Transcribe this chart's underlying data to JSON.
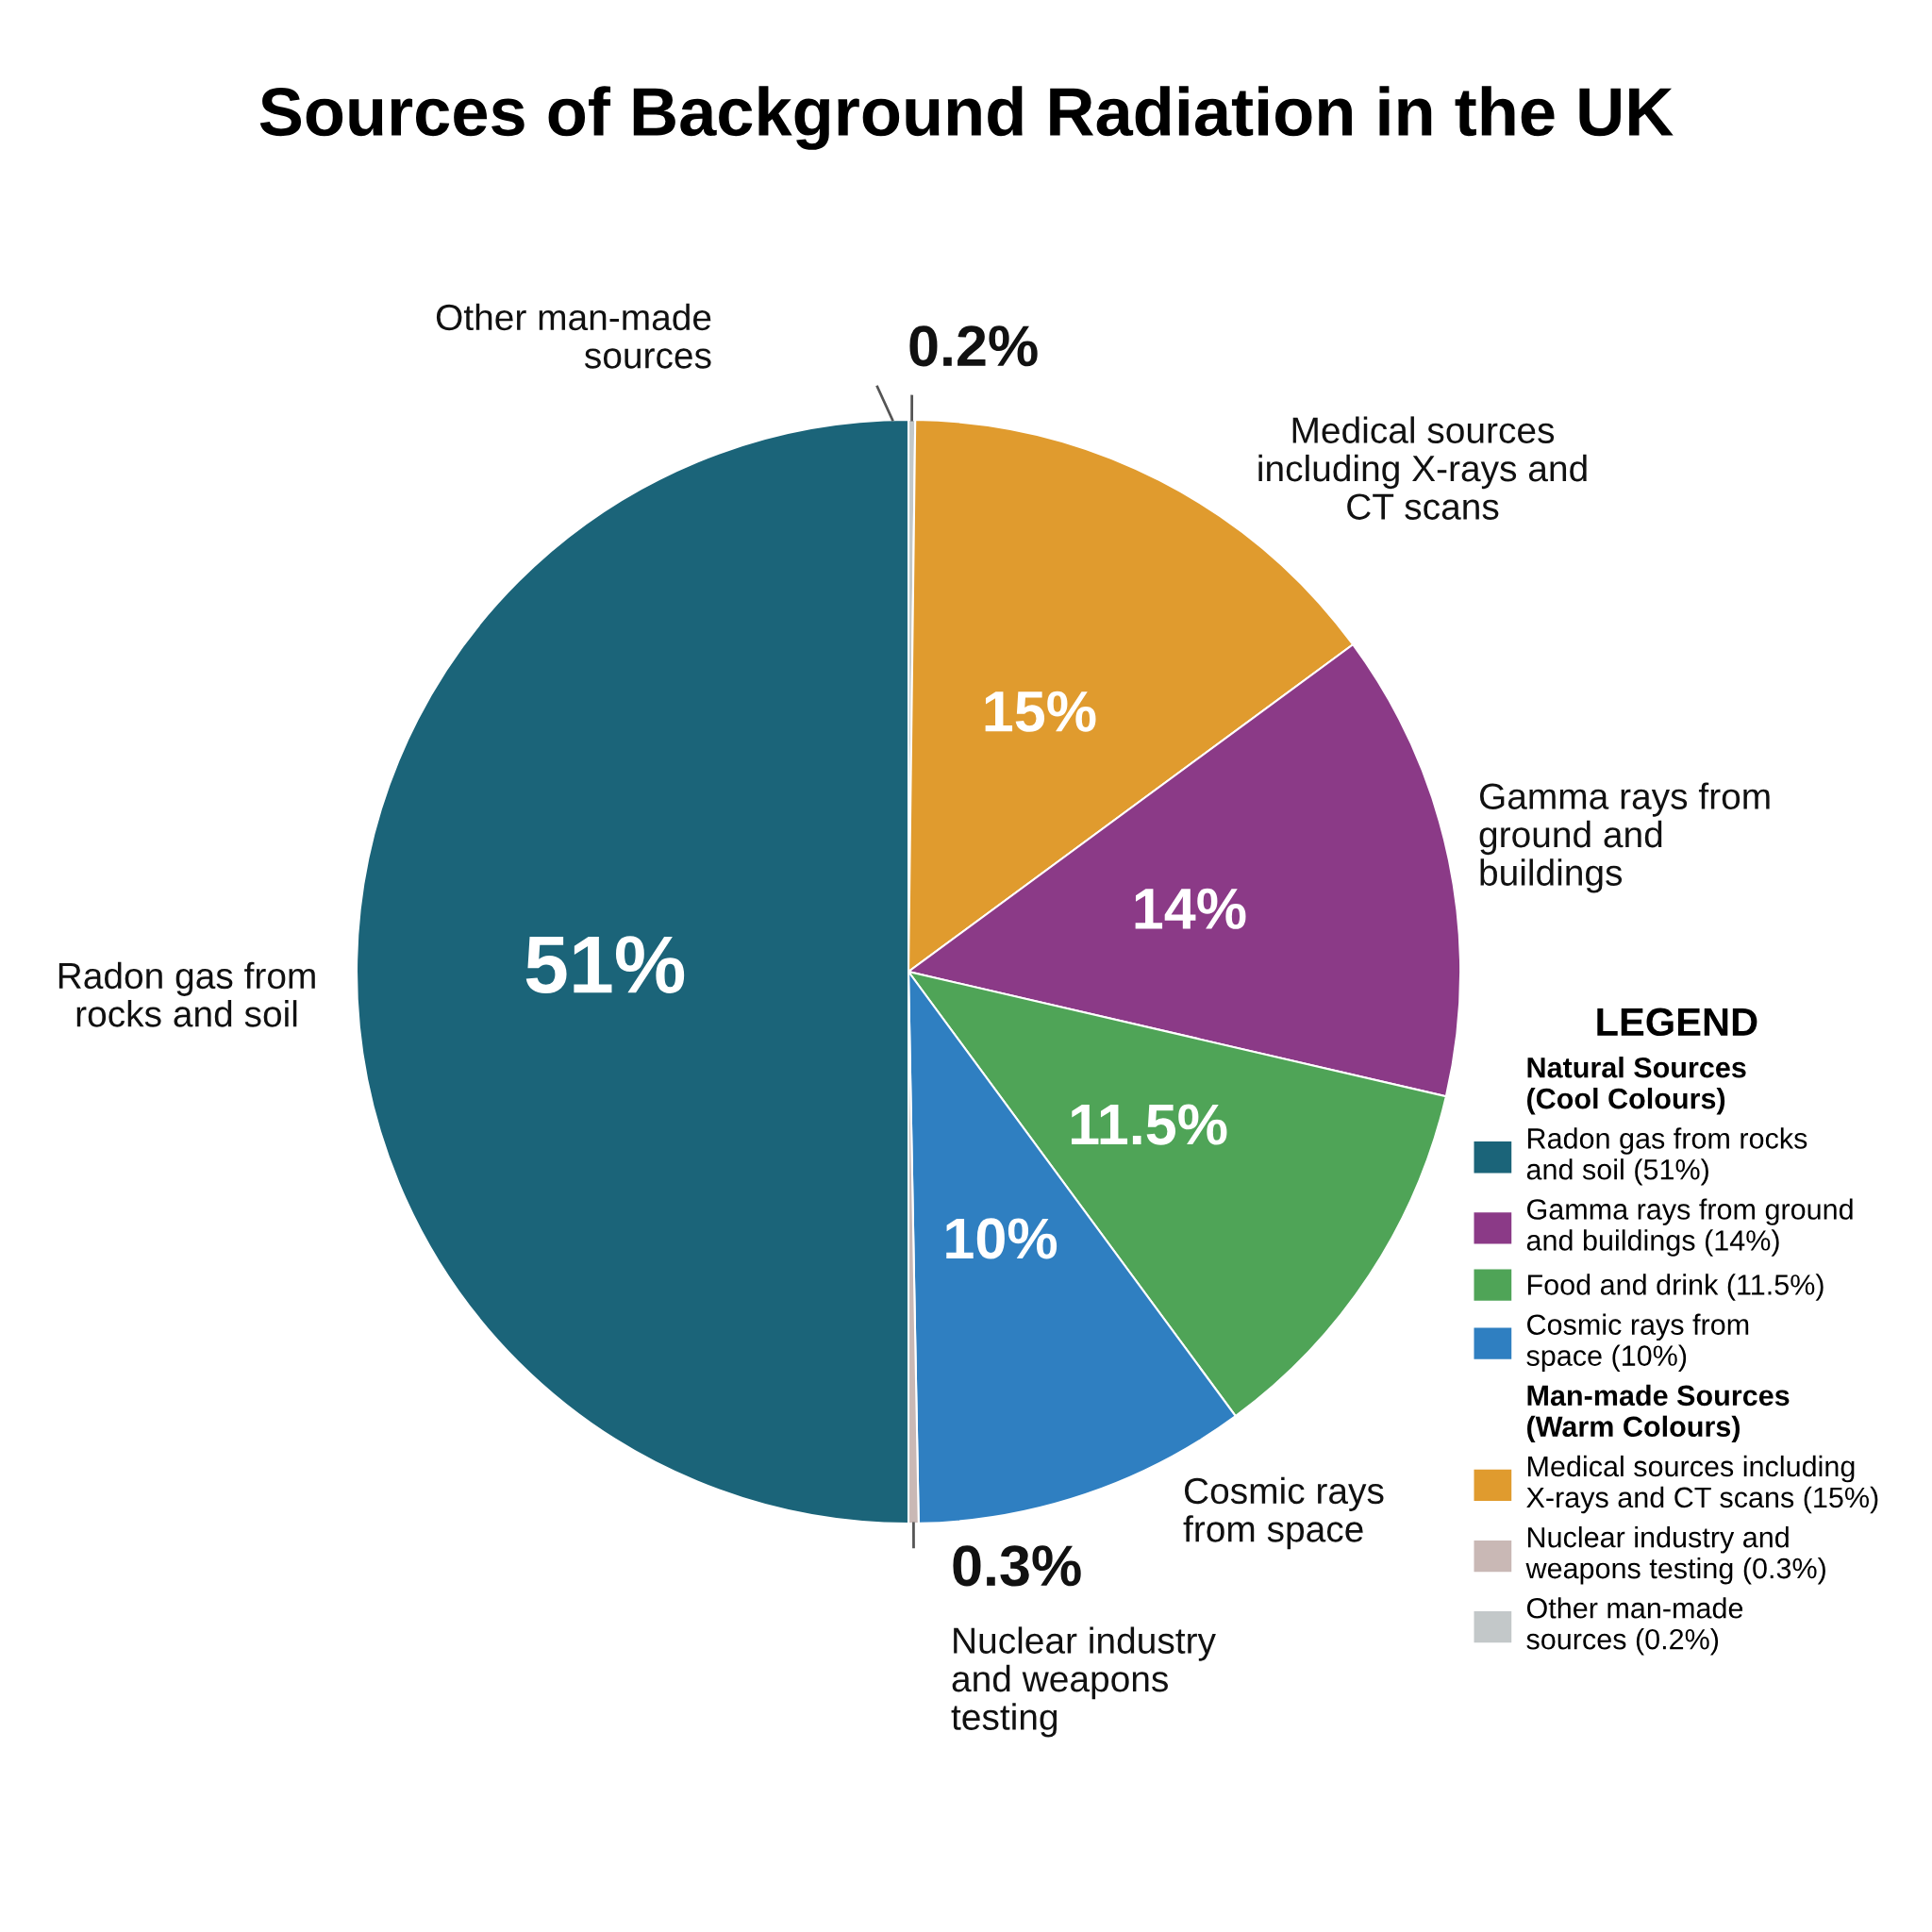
{
  "chart_data": {
    "type": "pie",
    "title": "Sources of Background Radiation in the UK",
    "legend_title": "LEGEND",
    "legend": "right",
    "categories": [
      "Other man-made\nsources (0.2%)",
      "Medical sources including\nX-rays and CT scans (15%)",
      "Gamma rays from ground\nand buildings (14%)",
      "Food and drink (11.5%)",
      "Cosmic rays from\nspace (10%)",
      "Nuclear industry and\nweapons testing (0.3%)",
      "Radon gas from rocks\nand soil (51%)"
    ],
    "values": [
      0.2,
      15,
      14,
      11.5,
      10,
      0.3,
      51
    ],
    "colors": [
      "#c3c8c9",
      "#e09b2e",
      "#8b3a87",
      "#4fa457",
      "#2f7fc1",
      "#c9b8b5",
      "#1b6479"
    ],
    "value_labels": [
      "0.2%",
      "15%",
      "14%",
      "11.5%",
      "10%",
      "0.3%",
      "51%"
    ],
    "annotations": [
      "Other man-made\nsources",
      "Medical sources\nincluding X-rays and\nCT scans",
      "Gamma rays from\nground and\nbuildings",
      "Cosmic rays\nfrom space",
      "Nuclear industry\nand weapons\ntesting",
      "Radon gas from\nrocks and soil",
      "Natural Sources\n(Cool Colours)",
      "Man-made Sources\n(Warm Colours)"
    ]
  }
}
